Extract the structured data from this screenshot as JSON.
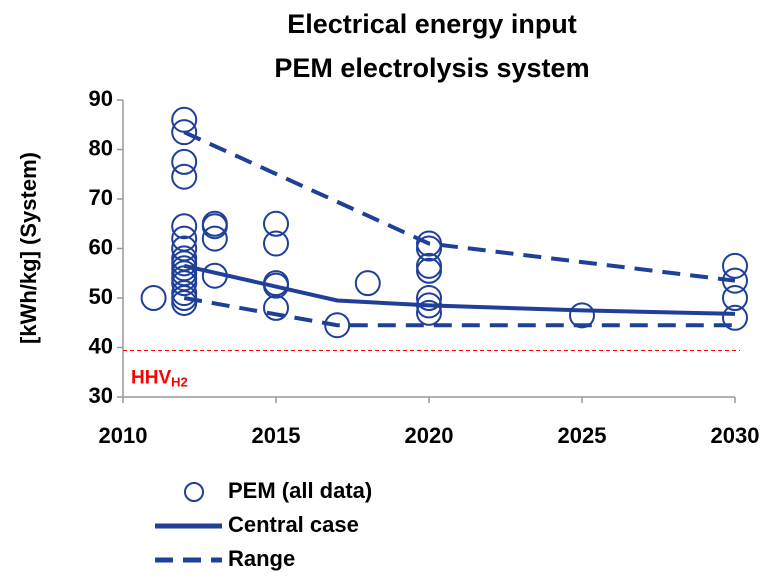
{
  "chart_data": {
    "type": "scatter",
    "title": [
      "Electrical energy input",
      "PEM electrolysis system"
    ],
    "ylabel": "[kWh/kg] (System)",
    "xlim": [
      2010,
      2030
    ],
    "xticks": [
      2010,
      2015,
      2020,
      2025,
      2030
    ],
    "ylim": [
      30,
      90
    ],
    "yticks": [
      30,
      40,
      50,
      60,
      70,
      80,
      90
    ],
    "grid": false,
    "reference": {
      "text": "HHV",
      "sub": "H2",
      "value": 39.4,
      "color": "#ff0000"
    },
    "series": [
      {
        "name": "PEM (all data)",
        "style": "markers",
        "color": "#1f3f99",
        "x": [
          2011,
          2012,
          2012,
          2012,
          2012,
          2012,
          2012,
          2012,
          2012,
          2012,
          2012,
          2012,
          2012,
          2012,
          2012,
          2012,
          2012,
          2013,
          2013,
          2013,
          2013,
          2015,
          2015,
          2015,
          2015,
          2015,
          2017,
          2018,
          2020,
          2020,
          2020,
          2020,
          2020,
          2020,
          2020,
          2025,
          2030,
          2030,
          2030,
          2030
        ],
        "values": [
          50,
          86,
          83.5,
          77.5,
          74.5,
          64.5,
          62,
          60,
          58,
          57,
          56,
          55,
          54,
          53,
          51,
          50,
          49,
          65,
          64.5,
          62,
          54.5,
          65,
          61,
          53,
          52.5,
          48,
          44.5,
          53,
          61,
          60,
          56.5,
          55.5,
          50,
          48.5,
          47,
          46.5,
          56.5,
          53.5,
          50,
          46
        ]
      },
      {
        "name": "Central case",
        "style": "solid",
        "color": "#1f3f99",
        "x": [
          2012,
          2017,
          2020,
          2025,
          2030
        ],
        "values": [
          56.5,
          49.5,
          48.5,
          47.5,
          46.8
        ]
      },
      {
        "name": "Range",
        "style": "dashed",
        "color": "#1f3f99",
        "x": [
          2012,
          2020,
          2030,
          null,
          2012,
          2017,
          2030
        ],
        "values": [
          83.5,
          61,
          53.5,
          null,
          50,
          44.5,
          44.5
        ]
      }
    ]
  }
}
